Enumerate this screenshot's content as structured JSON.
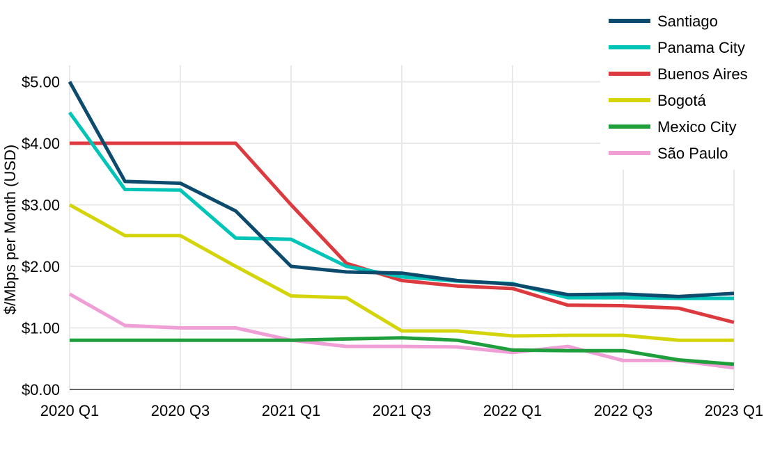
{
  "chart_data": {
    "type": "line",
    "x": [
      "2020 Q1",
      "2020 Q2",
      "2020 Q3",
      "2020 Q4",
      "2021 Q1",
      "2021 Q2",
      "2021 Q3",
      "2021 Q4",
      "2022 Q1",
      "2022 Q2",
      "2022 Q3",
      "2022 Q4",
      "2023 Q1"
    ],
    "xticks": [
      "2020 Q1",
      "2020 Q3",
      "2021 Q1",
      "2021 Q3",
      "2022 Q1",
      "2022 Q3",
      "2023 Q1"
    ],
    "ylabel": "$/Mbps per Month (USD)",
    "ylim": [
      0,
      5.0
    ],
    "yticks": [
      "$0.00",
      "$1.00",
      "$2.00",
      "$3.00",
      "$4.00",
      "$5.00"
    ],
    "grid": true,
    "legend_position": "top-right",
    "series": [
      {
        "name": "Santiago",
        "color": "#0c4a6e",
        "values": [
          5.0,
          3.38,
          3.35,
          2.9,
          2.0,
          1.91,
          1.89,
          1.77,
          1.71,
          1.54,
          1.55,
          1.51,
          1.56
        ]
      },
      {
        "name": "Panama City",
        "color": "#00c4b8",
        "values": [
          4.5,
          3.25,
          3.24,
          2.46,
          2.44,
          2.0,
          1.83,
          1.76,
          1.72,
          1.49,
          1.49,
          1.48,
          1.48
        ]
      },
      {
        "name": "Buenos Aires",
        "color": "#dc3a3f",
        "values": [
          4.0,
          4.0,
          4.0,
          4.0,
          3.0,
          2.05,
          1.77,
          1.68,
          1.64,
          1.37,
          1.36,
          1.32,
          1.09
        ]
      },
      {
        "name": "Bogotá",
        "color": "#d4d40a",
        "values": [
          3.0,
          2.5,
          2.5,
          2.0,
          1.52,
          1.49,
          0.95,
          0.95,
          0.87,
          0.88,
          0.88,
          0.8,
          0.8
        ]
      },
      {
        "name": "Mexico City",
        "color": "#1f9e3c",
        "values": [
          0.8,
          0.8,
          0.8,
          0.8,
          0.8,
          0.82,
          0.84,
          0.8,
          0.64,
          0.63,
          0.63,
          0.48,
          0.41
        ]
      },
      {
        "name": "São Paulo",
        "color": "#f09ed6",
        "values": [
          1.55,
          1.04,
          1.0,
          1.0,
          0.8,
          0.7,
          0.7,
          0.69,
          0.6,
          0.7,
          0.47,
          0.47,
          0.35
        ]
      }
    ]
  }
}
